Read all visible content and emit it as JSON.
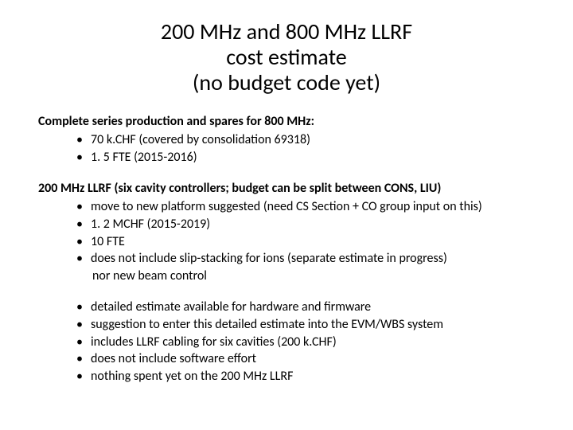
{
  "colors": {
    "background": "#ffffff",
    "text": "#000000"
  },
  "typography": {
    "title_fontsize": 28,
    "body_fontsize": 16,
    "font_family": "Calibri"
  },
  "title": {
    "line1": "200 MHz and 800 MHz LLRF",
    "line2": "cost estimate",
    "line3": "(no budget code yet)"
  },
  "section1": {
    "heading": "Complete series production and spares for 800 MHz:",
    "bullets": [
      "70 k.CHF (covered by consolidation 69318)",
      "1. 5 FTE (2015-2016)"
    ]
  },
  "section2": {
    "heading": "200 MHz LLRF (six cavity controllers; budget can be split between CONS, LIU)",
    "bullets": [
      "move to new platform suggested (need CS Section + CO group input on this)",
      "1. 2 MCHF (2015-2019)",
      "10 FTE",
      "does not include slip-stacking for ions (separate estimate in progress)"
    ],
    "continuation": "nor new beam control"
  },
  "section3": {
    "bullets": [
      "detailed estimate available for hardware and firmware",
      "suggestion to enter this detailed estimate into the EVM/WBS system",
      "includes LLRF cabling for six cavities (200 k.CHF)",
      "does not include software effort",
      "nothing spent yet on the 200 MHz LLRF"
    ]
  }
}
